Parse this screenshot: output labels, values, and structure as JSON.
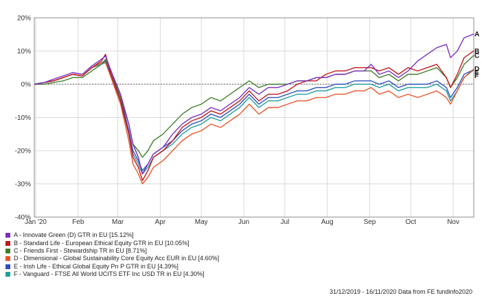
{
  "chart_data": {
    "type": "line",
    "title": "",
    "xlabel": "",
    "ylabel": "",
    "ylim": [
      -40,
      20
    ],
    "yticks": [
      20,
      10,
      0,
      -10,
      -20,
      -30,
      -40
    ],
    "ytick_labels": [
      "20%",
      "10%",
      "0%",
      "-10%",
      "-20%",
      "-30%",
      "-40%"
    ],
    "x_tick_labels": [
      "Jan '20",
      "Feb",
      "Mar",
      "Apr",
      "May",
      "Jun",
      "Jul",
      "Aug",
      "Sep",
      "Oct",
      "Nov"
    ],
    "x_tick_dates": [
      "2020-01-01",
      "2020-02-01",
      "2020-03-01",
      "2020-04-01",
      "2020-05-01",
      "2020-06-01",
      "2020-07-01",
      "2020-08-01",
      "2020-09-01",
      "2020-10-01",
      "2020-11-01"
    ],
    "xlim": [
      "2019-12-31",
      "2020-11-16"
    ],
    "zero_line": "dashed",
    "grid": true,
    "legend_position": "bottom-left",
    "x": [
      "2019-12-31",
      "2020-01-07",
      "2020-01-14",
      "2020-01-21",
      "2020-01-28",
      "2020-02-04",
      "2020-02-11",
      "2020-02-18",
      "2020-02-21",
      "2020-02-25",
      "2020-03-03",
      "2020-03-09",
      "2020-03-12",
      "2020-03-16",
      "2020-03-19",
      "2020-03-23",
      "2020-03-27",
      "2020-04-03",
      "2020-04-10",
      "2020-04-17",
      "2020-04-24",
      "2020-05-01",
      "2020-05-08",
      "2020-05-15",
      "2020-05-22",
      "2020-05-29",
      "2020-06-05",
      "2020-06-12",
      "2020-06-19",
      "2020-06-26",
      "2020-07-03",
      "2020-07-10",
      "2020-07-17",
      "2020-07-24",
      "2020-07-31",
      "2020-08-07",
      "2020-08-14",
      "2020-08-21",
      "2020-08-28",
      "2020-09-02",
      "2020-09-08",
      "2020-09-15",
      "2020-09-22",
      "2020-09-29",
      "2020-10-06",
      "2020-10-13",
      "2020-10-20",
      "2020-10-27",
      "2020-10-30",
      "2020-11-04",
      "2020-11-09",
      "2020-11-16"
    ],
    "series": [
      {
        "name": "A - Innovate Green (D) GTR in EU [15.12%]",
        "end_label": "A",
        "color": "#7b2fbe",
        "values": [
          0,
          0.5,
          1.5,
          2.5,
          3.5,
          3,
          5.5,
          7.5,
          8.5,
          4,
          -3,
          -12,
          -18,
          -22,
          -27,
          -24,
          -21,
          -19,
          -15,
          -12,
          -10,
          -9,
          -7,
          -8,
          -6,
          -4,
          -1,
          -3,
          -1,
          -1,
          0,
          1,
          1,
          2,
          2,
          3,
          3,
          4,
          4,
          6,
          3,
          4,
          2,
          4,
          7,
          9,
          11,
          12,
          8,
          10,
          14,
          15.12
        ]
      },
      {
        "name": "B - Standard Life - European Ethical Equity GTR in EU [10.05%]",
        "end_label": "B",
        "color": "#c0161c",
        "values": [
          0,
          0.5,
          1,
          2,
          3,
          2.5,
          5,
          7,
          9,
          3,
          -5,
          -15,
          -22,
          -25,
          -29,
          -26,
          -22,
          -20,
          -17,
          -13,
          -11,
          -10,
          -8,
          -9,
          -7,
          -5,
          -2,
          -5,
          -3,
          -3,
          -2,
          0,
          1,
          1,
          3,
          4,
          4,
          5,
          5,
          5,
          4,
          5,
          3,
          5,
          4,
          5,
          6,
          2,
          -1,
          3,
          8,
          10.05
        ]
      },
      {
        "name": "C - Friends First - Stewardship TR in EU [8.71%]",
        "end_label": "C",
        "color": "#3f7f2a",
        "values": [
          0,
          0,
          0.5,
          1,
          2,
          2,
          4,
          6,
          7.5,
          4,
          -4,
          -12,
          -18,
          -20,
          -22,
          -20,
          -17,
          -15,
          -12,
          -9,
          -7,
          -6,
          -4,
          -5,
          -3,
          -1,
          1,
          -1,
          0,
          0,
          0,
          1,
          1,
          2,
          2,
          3,
          3,
          4,
          4,
          4,
          2,
          3,
          1,
          3,
          3,
          4,
          5,
          2,
          -1,
          2,
          6,
          8.71
        ]
      },
      {
        "name": "D - Dimensional - Global Sustainability Core Equity Acc EUR in EU [4.60%]",
        "end_label": "D",
        "color": "#e8552b",
        "values": [
          0,
          0.5,
          1,
          2,
          3,
          2.5,
          5,
          6.5,
          6.5,
          2,
          -6,
          -17,
          -24,
          -27,
          -30,
          -28,
          -25,
          -23,
          -20,
          -17,
          -15,
          -14,
          -12,
          -13,
          -11,
          -9,
          -6,
          -9,
          -7,
          -7,
          -6,
          -5,
          -5,
          -4,
          -4,
          -3,
          -3,
          -2,
          -2,
          -1,
          -3,
          -2,
          -4,
          -3,
          -4,
          -3,
          -2,
          -4,
          -6,
          -2,
          2,
          4.6
        ]
      },
      {
        "name": "E - Irish Life - Ethical Global Equity Pn P GTR in EU [4.39%]",
        "end_label": "E",
        "color": "#2d4fbf",
        "values": [
          0,
          0.5,
          1,
          2,
          3,
          2.5,
          5,
          6.5,
          7,
          3,
          -4,
          -14,
          -20,
          -23,
          -26,
          -24,
          -21,
          -19,
          -17,
          -14,
          -12,
          -11,
          -9,
          -10,
          -8,
          -6,
          -3,
          -6,
          -4,
          -4,
          -3,
          -2,
          -2,
          -1,
          -1,
          0,
          0,
          1,
          1,
          1,
          0,
          1,
          -1,
          0,
          0,
          0,
          1,
          -1,
          -4,
          -1,
          3,
          4.39
        ]
      },
      {
        "name": "F - Vanguard - FTSE All World UCITS ETF Inc USD TR in EU [4.30%]",
        "end_label": "F",
        "color": "#1f9e9e",
        "values": [
          0,
          0.5,
          1,
          2,
          3,
          2.5,
          5,
          6,
          6.5,
          2.5,
          -5,
          -15,
          -21,
          -24,
          -27,
          -25,
          -22,
          -20,
          -18,
          -15,
          -13,
          -12,
          -10,
          -11,
          -9,
          -7,
          -4,
          -7,
          -5,
          -5,
          -4,
          -3,
          -3,
          -2,
          -2,
          -1,
          -1,
          0,
          0,
          0,
          -1,
          0,
          -2,
          -1,
          -1,
          -1,
          0,
          -2,
          -5,
          -2,
          2,
          4.3
        ]
      }
    ]
  },
  "footer": {
    "source": "31/12/2019 - 16/11/2020 Data from FE fundinfo2020"
  }
}
